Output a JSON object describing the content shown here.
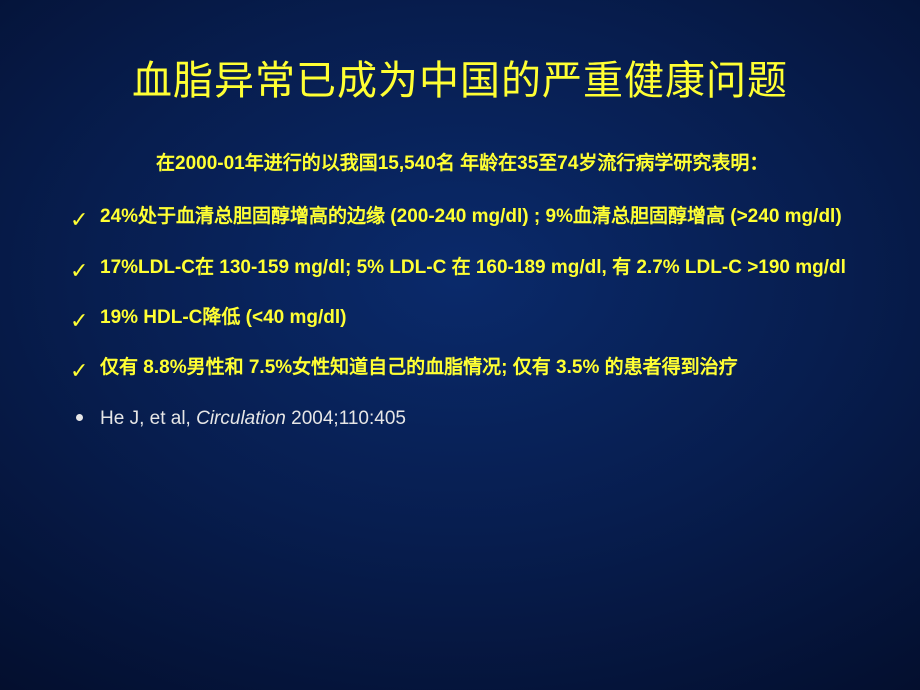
{
  "title": "血脂异常已成为中国的严重健康问题",
  "intro": "在2000-01年进行的以我国15,540名 年龄在35至74岁流行病学研究表明：",
  "bullets": [
    {
      "type": "check",
      "text": "24%处于血清总胆固醇增高的边缘 (200-240 mg/dl) ; 9%血清总胆固醇增高 (>240 mg/dl)"
    },
    {
      "type": "check",
      "text": "17%LDL-C在 130-159 mg/dl; 5% LDL-C 在 160-189 mg/dl, 有 2.7% LDL-C >190 mg/dl"
    },
    {
      "type": "check",
      "text": "19% HDL-C降低 (<40 mg/dl)"
    },
    {
      "type": "check",
      "text": "仅有 8.8%男性和 7.5%女性知道自己的血脂情况; 仅有 3.5% 的患者得到治疗"
    }
  ],
  "reference": {
    "author": "He J, et al, ",
    "journal": "Circulation",
    "citation": " 2004;110:405"
  },
  "colors": {
    "title": "#ffff33",
    "body": "#ffff33",
    "ref": "#e6e6e6",
    "bg_center": "#0a2a6b",
    "bg_edge": "#000000"
  },
  "fontsize": {
    "title": 40,
    "body": 19
  }
}
